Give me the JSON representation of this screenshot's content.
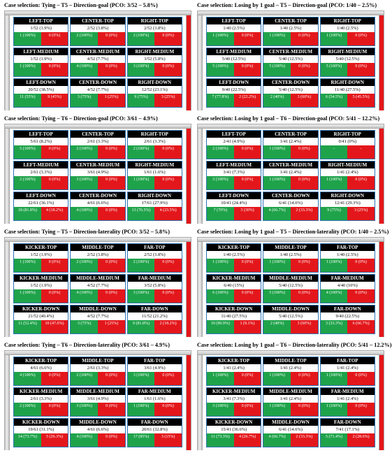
{
  "panels": [
    {
      "title": "Case selection: Tying – T5 – Direction-goal (PCO: 3/52 – 5.8%)",
      "zones": [
        {
          "name": "LEFT-TOP",
          "value": "1/52 (1.9%)",
          "green": "1 (100%)",
          "red": "0 (0%)"
        },
        {
          "name": "CENTER-TOP",
          "value": "2/52 (3.8%)",
          "green": "2 (100%)",
          "red": "0 (0%)"
        },
        {
          "name": "RIGHT-TOP",
          "value": "2/52 (3.8%)",
          "green": "2 (100%)",
          "red": "0 (0%)"
        },
        {
          "name": "LEFT-MEDIUM",
          "value": "1/52 (1.9%)",
          "green": "1 (100%)",
          "red": "0 (0%)"
        },
        {
          "name": "CENTER-MEDIUM",
          "value": "4/52 (7.7%)",
          "green": "4 (100%)",
          "red": "0 (0%)"
        },
        {
          "name": "RIGHT-MEDIUM",
          "value": "3/52 (5.8%)",
          "green": "3 (100%)",
          "red": "0 (0%)"
        },
        {
          "name": "LEFT-DOWN",
          "value": "20/52 (38.5%)",
          "green": "11 (55%)",
          "red": "9 (45%)"
        },
        {
          "name": "CENTER-DOWN",
          "value": "4/52 (7.7%)",
          "green": "3 (75%)",
          "red": "1 (25%)"
        },
        {
          "name": "RIGHT-DOWN",
          "value": "12/52 (23.1%)",
          "green": "9 (75%)",
          "red": "3 (25%)"
        }
      ]
    },
    {
      "title": "Case selection: Losing by 1 goal – T5 – Direction-goal (PCO: 1/40 – 2.5%)",
      "zones": [
        {
          "name": "LEFT-TOP",
          "value": "1/40 (2.5%)",
          "green": "1 (100%)",
          "red": "0 (0%)"
        },
        {
          "name": "CENTER-TOP",
          "value": "1/40 (2.5%)",
          "green": "1 (100%)",
          "red": "0 (0%)"
        },
        {
          "name": "RIGHT-TOP",
          "value": "1/40 (2.5%)",
          "green": "1 (100%)",
          "red": "0 (0%)"
        },
        {
          "name": "LEFT-MEDIUM",
          "value": "5/40 (12.5%)",
          "green": "5 (100%)",
          "red": "0 (0%)"
        },
        {
          "name": "CENTER-MEDIUM",
          "value": "5/40 (12.5%)",
          "green": "5 (100%)",
          "red": "0 (0%)"
        },
        {
          "name": "RIGHT-MEDIUM",
          "value": "5/40 (12.5%)",
          "green": "5 (100%)",
          "red": "0 (0%)"
        },
        {
          "name": "LEFT-DOWN",
          "value": "9/40 (22.5%)",
          "green": "7 (77.8%)",
          "red": "2 (22.2%)"
        },
        {
          "name": "CENTER-DOWN",
          "value": "5/40 (12.5%)",
          "green": "2 (40%)",
          "red": "3 (60%)"
        },
        {
          "name": "RIGHT-DOWN",
          "value": "11/40 (27.5%)",
          "green": "6 (54.5%)",
          "red": "5 (45.5%)"
        }
      ]
    },
    {
      "title": "Case selection: Tying – T6 – Direction-goal (PCO: 3/61 – 4.9%)",
      "zones": [
        {
          "name": "LEFT-TOP",
          "value": "5/61 (8.2%)",
          "green": "5 (100%)",
          "red": "0 (0%)"
        },
        {
          "name": "CENTER-TOP",
          "value": "2/61 (3.3%)",
          "green": "2 (100%)",
          "red": "0 (0%)"
        },
        {
          "name": "RIGHT-TOP",
          "value": "2/61 (3.3%)",
          "green": "2 (100%)",
          "red": "0 (0%)"
        },
        {
          "name": "LEFT-MEDIUM",
          "value": "2/61 (3.3%)",
          "green": "2 (100%)",
          "red": "0 (0%)"
        },
        {
          "name": "CENTER-MEDIUM",
          "value": "3/61 (4.9%)",
          "green": "3 (100%)",
          "red": "0 (0%)"
        },
        {
          "name": "RIGHT-MEDIUM",
          "value": "1/61 (1.6%)",
          "green": "1 (100%)",
          "red": "0 (0%)"
        },
        {
          "name": "LEFT-DOWN",
          "value": "22/61 (36.1%)",
          "green": "18 (81.8%)",
          "red": "4 (18.2%)"
        },
        {
          "name": "CENTER-DOWN",
          "value": "4/61 (6.6%)",
          "green": "4 (100%)",
          "red": "0 (0%)"
        },
        {
          "name": "RIGHT-DOWN",
          "value": "17/61 (27.9%)",
          "green": "13 (76.5%)",
          "red": "4 (23.5%)"
        }
      ]
    },
    {
      "title": "Case selection: Losing by 1 goal – T6 – Direction-goal (PCO: 5/41 – 12.2%)",
      "zones": [
        {
          "name": "LEFT-TOP",
          "value": "2/41 (4.9%)",
          "green": "2 (100%)",
          "red": "0 (0%)"
        },
        {
          "name": "CENTER-TOP",
          "value": "1/41 (2.4%)",
          "green": "1 (100%)",
          "red": "0 (0%)"
        },
        {
          "name": "RIGHT-TOP",
          "value": "0/41 (0%)",
          "green": "-",
          "red": "-"
        },
        {
          "name": "LEFT-MEDIUM",
          "value": "3/41 (7.3%)",
          "green": "3 (100%)",
          "red": "0 (0%)"
        },
        {
          "name": "CENTER-MEDIUM",
          "value": "1/41 (2.4%)",
          "green": "1 (100%)",
          "red": "0 (0%)"
        },
        {
          "name": "RIGHT-MEDIUM",
          "value": "1/41 (2.4%)",
          "green": "1 (100%)",
          "red": "0 (0%)"
        },
        {
          "name": "LEFT-DOWN",
          "value": "10/41 (24.4%)",
          "green": "7 (70%)",
          "red": "3 (30%)"
        },
        {
          "name": "CENTER-DOWN",
          "value": "6/41 (14.6%)",
          "green": "4 (66.7%)",
          "red": "2 (33.3%)"
        },
        {
          "name": "RIGHT-DOWN",
          "value": "12/41 (29.3%)",
          "green": "9 (75%)",
          "red": "3 (25%)"
        }
      ]
    },
    {
      "title": "Case selection: Tying – T5 – Direction-laterality (PCO: 3/52 – 5.8%)",
      "zones": [
        {
          "name": "KICKER-TOP",
          "value": "1/52 (1.9%)",
          "green": "1 (100%)",
          "red": "0 (0%)"
        },
        {
          "name": "MIDDLE-TOP",
          "value": "2/52 (3.8%)",
          "green": "2 (100%)",
          "red": "0 (0%)"
        },
        {
          "name": "FAR-TOP",
          "value": "2/52 (3.8%)",
          "green": "2 (100%)",
          "red": "0 (0%)"
        },
        {
          "name": "KICKER-MEDIUM",
          "value": "1/52 (1.9%)",
          "green": "1 (100%)",
          "red": "0 (0%)"
        },
        {
          "name": "MIDDLE-MEDIUM",
          "value": "4/52 (7.7%)",
          "green": "4 (100%)",
          "red": "0 (0%)"
        },
        {
          "name": "FAR-MEDIUM",
          "value": "3/52 (5.8%)",
          "green": "3 (100%)",
          "red": "0 (0%)"
        },
        {
          "name": "KICKER-DOWN",
          "value": "21/52 (40.4%)",
          "green": "11 (52.4%)",
          "red": "10 (47.6%)"
        },
        {
          "name": "MIDDLE-DOWN",
          "value": "4/52 (7.7%)",
          "green": "3 (75%)",
          "red": "1 (25%)"
        },
        {
          "name": "FAR-DOWN",
          "value": "11/52 (21.2%)",
          "green": "9 (81.8%)",
          "red": "2 (18.2%)"
        }
      ]
    },
    {
      "title": "Case selection: Losing by 1 goal – T5 – Direction-laterality (PCO: 1/40 – 2.5%)",
      "zones": [
        {
          "name": "KICKER-TOP",
          "value": "1/40 (2.5%)",
          "green": "1 (100%)",
          "red": "0 (0%)"
        },
        {
          "name": "MIDDLE-TOP",
          "value": "1/40 (2.5%)",
          "green": "1 (100%)",
          "red": "0 (0%)"
        },
        {
          "name": "FAR-TOP",
          "value": "1/40 (2.5%)",
          "green": "1 (100%)",
          "red": "0 (0%)"
        },
        {
          "name": "KICKER-MEDIUM",
          "value": "6/40 (15%)",
          "green": "6 (100%)",
          "red": "0 (0%)"
        },
        {
          "name": "MIDDLE-MEDIUM",
          "value": "5/40 (12.5%)",
          "green": "5 (100%)",
          "red": "0 (0%)"
        },
        {
          "name": "FAR-MEDIUM",
          "value": "4/40 (10%)",
          "green": "4 (100%)",
          "red": "0 (0%)"
        },
        {
          "name": "KICKER-DOWN",
          "value": "11/40 (27.5%)",
          "green": "10 (90.9%)",
          "red": "1 (9.1%)"
        },
        {
          "name": "MIDDLE-DOWN",
          "value": "5/40 (12.5%)",
          "green": "2 (40%)",
          "red": "3 (60%)"
        },
        {
          "name": "FAR-DOWN",
          "value": "9/40 (22.5%)",
          "green": "3 (33.3%)",
          "red": "6 (66.7%)"
        }
      ]
    },
    {
      "title": "Case selection: Tying – T6 – Direction-laterality (PCO: 3/61 – 4.9%)",
      "zones": [
        {
          "name": "KICKER-TOP",
          "value": "4/61 (6.6%)",
          "green": "4 (100%)",
          "red": "0 (0%)"
        },
        {
          "name": "MIDDLE-TOP",
          "value": "2/61 (3.3%)",
          "green": "2 (100%)",
          "red": "0 (0%)"
        },
        {
          "name": "FAR-TOP",
          "value": "3/61 (4.9%)",
          "green": "3 (100%)",
          "red": "0 (0%)"
        },
        {
          "name": "KICKER-MEDIUM",
          "value": "2/61 (3.3%)",
          "green": "2 (100%)",
          "red": "0 (0%)"
        },
        {
          "name": "MIDDLE-MEDIUM",
          "value": "3/61 (4.9%)",
          "green": "3 (100%)",
          "red": "0 (0%)"
        },
        {
          "name": "FAR-MEDIUM",
          "value": "1/61 (1.6%)",
          "green": "1 (100%)",
          "red": "0 (0%)"
        },
        {
          "name": "KICKER-DOWN",
          "value": "19/61 (31.1%)",
          "green": "14 (73.7%)",
          "red": "5 (26.3%)"
        },
        {
          "name": "MIDDLE-DOWN",
          "value": "4/61 (6.6%)",
          "green": "4 (100%)",
          "red": "0 (0%)"
        },
        {
          "name": "FAR-DOWN",
          "value": "20/61 (32.8%)",
          "green": "17 (85%)",
          "red": "3 (15%)"
        }
      ]
    },
    {
      "title": "Case selection: Losing by 1 goal – T6 – Direction-laterality (PCO: 5/41 – 12.2%)",
      "zones": [
        {
          "name": "KICKER-TOP",
          "value": "1/41 (2.4%)",
          "green": "1 (100%)",
          "red": "0 (0%)"
        },
        {
          "name": "MIDDLE-TOP",
          "value": "1/41 (2.4%)",
          "green": "1 (100%)",
          "red": "0 (0%)"
        },
        {
          "name": "FAR-TOP",
          "value": "1/41 (2.4%)",
          "green": "1 (100%)",
          "red": "0 (0%)"
        },
        {
          "name": "KICKER-MEDIUM",
          "value": "3/41 (7.3%)",
          "green": "3 (100%)",
          "red": "0 (0%)"
        },
        {
          "name": "MIDDLE-MEDIUM",
          "value": "1/41 (2.4%)",
          "green": "1 (100%)",
          "red": "0 (0%)"
        },
        {
          "name": "FAR-MEDIUM",
          "value": "1/41 (2.4%)",
          "green": "1 (100%)",
          "red": "0 (0%)"
        },
        {
          "name": "KICKER-DOWN",
          "value": "15/41 (36.6%)",
          "green": "11 (73.3%)",
          "red": "4 (26.7%)"
        },
        {
          "name": "MIDDLE-DOWN",
          "value": "6/41 (14.6%)",
          "green": "4 (66.7%)",
          "red": "2 (33.3%)"
        },
        {
          "name": "FAR-DOWN",
          "value": "7/41 (17.1%)",
          "green": "5 (71.4%)",
          "red": "2 (28.6%)"
        }
      ]
    }
  ]
}
